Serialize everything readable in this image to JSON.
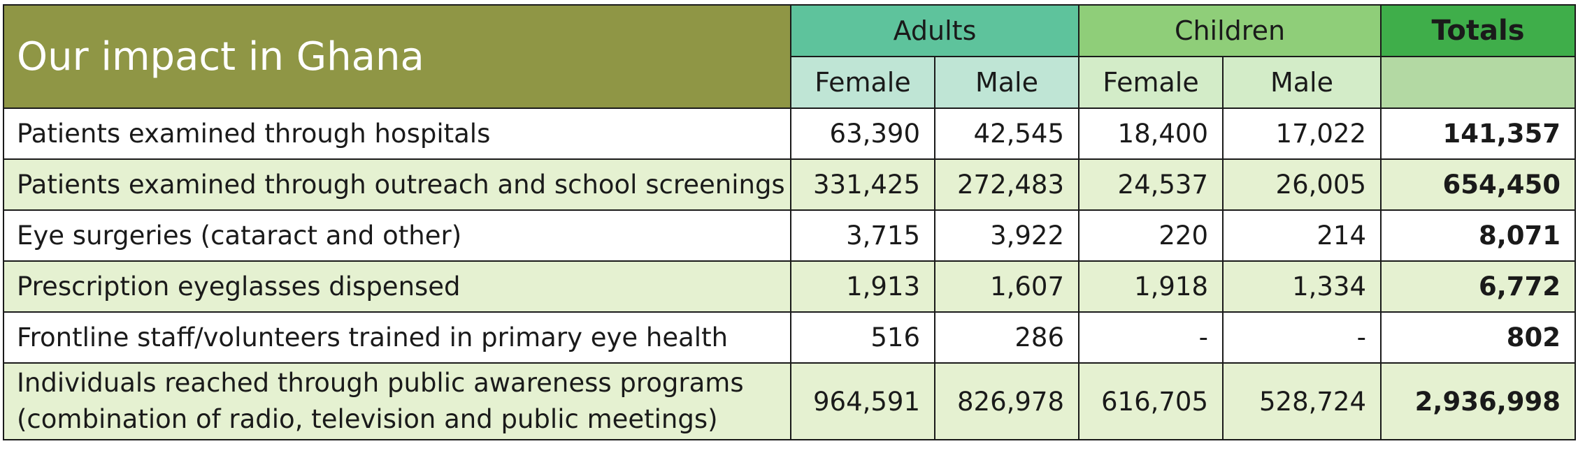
{
  "table": {
    "title": "Our impact in Ghana",
    "groups": {
      "adults": "Adults",
      "children": "Children",
      "totals": "Totals"
    },
    "subheaders": {
      "adults_female": "Female",
      "adults_male": "Male",
      "children_female": "Female",
      "children_male": "Male",
      "totals": ""
    },
    "rows": [
      {
        "label": "Patients examined through hospitals",
        "adults_female": "63,390",
        "adults_male": "42,545",
        "children_female": "18,400",
        "children_male": "17,022",
        "total": "141,357"
      },
      {
        "label": "Patients examined through outreach and school screenings",
        "adults_female": "331,425",
        "adults_male": "272,483",
        "children_female": "24,537",
        "children_male": "26,005",
        "total": "654,450"
      },
      {
        "label": "Eye surgeries (cataract and other)",
        "adults_female": "3,715",
        "adults_male": "3,922",
        "children_female": "220",
        "children_male": "214",
        "total": "8,071"
      },
      {
        "label": "Prescription eyeglasses dispensed",
        "adults_female": "1,913",
        "adults_male": "1,607",
        "children_female": "1,918",
        "children_male": "1,334",
        "total": "6,772"
      },
      {
        "label": "Frontline staff/volunteers trained in primary eye health",
        "adults_female": "516",
        "adults_male": "286",
        "children_female": "-",
        "children_male": "-",
        "total": "802"
      },
      {
        "label_line1": "Individuals reached through public awareness programs",
        "label_line2": "(combination of radio, television and public meetings)",
        "adults_female": "964,591",
        "adults_male": "826,978",
        "children_female": "616,705",
        "children_male": "528,724",
        "total": "2,936,998"
      }
    ]
  }
}
